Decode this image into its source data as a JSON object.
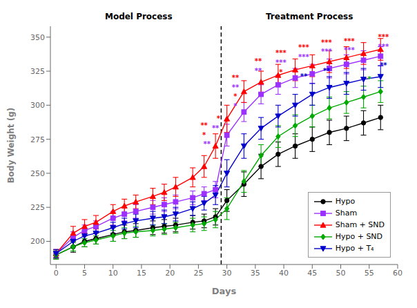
{
  "chart_data": {
    "type": "line",
    "xlabel": "Days",
    "ylabel": "Body Weight (g)",
    "xlim": [
      -1,
      60
    ],
    "ylim": [
      183,
      358
    ],
    "xticks": [
      0,
      5,
      10,
      15,
      20,
      25,
      30,
      35,
      40,
      45,
      50,
      55,
      60
    ],
    "yticks": [
      200,
      225,
      250,
      275,
      300,
      325,
      350
    ],
    "grid": false,
    "legend": "lower right",
    "x": [
      0,
      3,
      5,
      7,
      10,
      12,
      14,
      17,
      19,
      21,
      24,
      26,
      28,
      30,
      33,
      36,
      39,
      42,
      45,
      48,
      51,
      54,
      57
    ],
    "series": [
      {
        "name": "Hypo",
        "color": "#000000",
        "marker": "circle",
        "values": [
          190,
          196,
          200,
          202,
          205,
          207,
          208,
          210,
          211,
          212,
          214,
          215,
          218,
          230,
          242,
          255,
          264,
          270,
          275,
          280,
          283,
          287,
          291
        ],
        "yerr": [
          3,
          4,
          4,
          4,
          5,
          5,
          5,
          5,
          5,
          5,
          5,
          5,
          6,
          8,
          9,
          9,
          9,
          9,
          9,
          9,
          9,
          9,
          9
        ]
      },
      {
        "name": "Sham",
        "color": "#9B30FF",
        "marker": "square",
        "values": [
          191,
          203,
          208,
          211,
          217,
          220,
          222,
          225,
          227,
          229,
          232,
          235,
          238,
          278,
          295,
          308,
          315,
          320,
          323,
          327,
          330,
          333,
          336
        ],
        "yerr": [
          3,
          4,
          4,
          4,
          5,
          5,
          5,
          5,
          5,
          5,
          5,
          5,
          6,
          8,
          7,
          7,
          7,
          7,
          7,
          7,
          7,
          7,
          7
        ]
      },
      {
        "name": "Sham + SND",
        "color": "#FF0000",
        "marker": "triangle-up",
        "values": [
          191,
          206,
          211,
          214,
          222,
          226,
          229,
          233,
          236,
          240,
          247,
          255,
          270,
          290,
          310,
          317,
          322,
          326,
          329,
          332,
          335,
          338,
          341
        ],
        "yerr": [
          3,
          5,
          5,
          5,
          5,
          5,
          5,
          6,
          6,
          7,
          7,
          8,
          9,
          10,
          8,
          8,
          8,
          8,
          8,
          8,
          8,
          8,
          8
        ]
      },
      {
        "name": "Hypo + SND",
        "color": "#00AA00",
        "marker": "diamond",
        "values": [
          190,
          196,
          199,
          201,
          204,
          206,
          207,
          208,
          209,
          210,
          212,
          213,
          216,
          224,
          244,
          263,
          277,
          285,
          292,
          298,
          302,
          306,
          310
        ],
        "yerr": [
          3,
          3,
          3,
          3,
          4,
          4,
          4,
          4,
          4,
          4,
          5,
          5,
          6,
          8,
          8,
          8,
          8,
          8,
          8,
          8,
          8,
          8,
          8
        ]
      },
      {
        "name": "Hypo + T₄",
        "color": "#0000CC",
        "marker": "triangle-down",
        "values": [
          191,
          200,
          204,
          206,
          210,
          213,
          215,
          217,
          218,
          220,
          224,
          228,
          234,
          250,
          270,
          283,
          292,
          300,
          308,
          313,
          316,
          319,
          321
        ],
        "yerr": [
          3,
          4,
          4,
          4,
          4,
          4,
          5,
          5,
          5,
          5,
          5,
          5,
          7,
          10,
          9,
          8,
          8,
          8,
          8,
          8,
          8,
          8,
          8
        ]
      }
    ],
    "vline": {
      "x": 29,
      "color": "#000000",
      "line_style": "dashed"
    },
    "annotations": [
      {
        "text": "Model Process",
        "x": 14.5
      },
      {
        "text": "Treatment Process",
        "x": 44.5
      },
      {
        "x": 26.0,
        "y": 283,
        "text": "**",
        "color": "#FF0000"
      },
      {
        "x": 26.0,
        "y": 276,
        "text": "*",
        "color": "#FF0000"
      },
      {
        "x": 26.5,
        "y": 269,
        "text": "**",
        "color": "#9B30FF"
      },
      {
        "x": 28.5,
        "y": 288,
        "text": "*",
        "color": "#FF0000"
      },
      {
        "x": 28.0,
        "y": 281,
        "text": "**",
        "color": "#9B30FF"
      },
      {
        "x": 31.5,
        "y": 318,
        "text": "**",
        "color": "#FF0000"
      },
      {
        "x": 31.5,
        "y": 311,
        "text": "**",
        "color": "#9B30FF"
      },
      {
        "x": 31.5,
        "y": 304,
        "text": "*",
        "color": "#FF0000"
      },
      {
        "x": 31.5,
        "y": 297,
        "text": "*",
        "color": "#9B30FF"
      },
      {
        "x": 35.5,
        "y": 330,
        "text": "**",
        "color": "#FF0000"
      },
      {
        "x": 35.5,
        "y": 323,
        "text": "**",
        "color": "#9B30FF"
      },
      {
        "x": 39.5,
        "y": 336,
        "text": "***",
        "color": "#FF0000"
      },
      {
        "x": 39.5,
        "y": 329,
        "text": "***",
        "color": "#9B30FF"
      },
      {
        "x": 39.5,
        "y": 322,
        "text": "*",
        "color": "#FF0000"
      },
      {
        "x": 43.5,
        "y": 340,
        "text": "***",
        "color": "#FF0000"
      },
      {
        "x": 43.5,
        "y": 333,
        "text": "***",
        "color": "#9B30FF"
      },
      {
        "x": 43.5,
        "y": 319,
        "text": "**",
        "color": "#0000CC"
      },
      {
        "x": 47.5,
        "y": 344,
        "text": "***",
        "color": "#FF0000"
      },
      {
        "x": 47.5,
        "y": 337,
        "text": "***",
        "color": "#9B30FF"
      },
      {
        "x": 47.5,
        "y": 323,
        "text": "**",
        "color": "#0000CC"
      },
      {
        "x": 51.5,
        "y": 345,
        "text": "***",
        "color": "#FF0000"
      },
      {
        "x": 51.5,
        "y": 338,
        "text": "***",
        "color": "#9B30FF"
      },
      {
        "x": 57.5,
        "y": 348,
        "text": "***",
        "color": "#FF0000"
      },
      {
        "x": 57.5,
        "y": 341,
        "text": "***",
        "color": "#9B30FF"
      },
      {
        "x": 57.5,
        "y": 327,
        "text": "**",
        "color": "#0000CC"
      },
      {
        "x": 55.0,
        "y": 317,
        "text": "*",
        "color": "#00AA00"
      }
    ]
  }
}
